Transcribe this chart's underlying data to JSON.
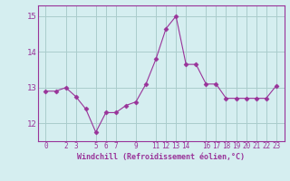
{
  "x": [
    0,
    1,
    2,
    3,
    4,
    5,
    6,
    7,
    8,
    9,
    10,
    11,
    12,
    13,
    14,
    15,
    16,
    17,
    18,
    19,
    20,
    21,
    22,
    23
  ],
  "y": [
    12.9,
    12.9,
    13.0,
    12.75,
    12.4,
    11.75,
    12.3,
    12.3,
    12.5,
    12.6,
    13.1,
    13.8,
    14.65,
    15.0,
    13.65,
    13.65,
    13.1,
    13.1,
    12.7,
    12.7,
    12.7,
    12.7,
    12.7,
    13.05
  ],
  "line_color": "#993399",
  "marker": "D",
  "marker_size": 2.5,
  "bg_color": "#d5eef0",
  "grid_color": "#aacccc",
  "xlabel": "Windchill (Refroidissement éolien,°C)",
  "xlabel_color": "#993399",
  "tick_color": "#993399",
  "ylim": [
    11.5,
    15.3
  ],
  "yticks": [
    12,
    13,
    14,
    15
  ],
  "xtick_positions": [
    0,
    2,
    3,
    5,
    6,
    7,
    9,
    11,
    12,
    13,
    14,
    16,
    17,
    18,
    19,
    20,
    21,
    22,
    23
  ],
  "xtick_labels": [
    "0",
    "2",
    "3",
    "5",
    "6",
    "7",
    "9",
    "11",
    "12",
    "13",
    "14",
    "16",
    "17",
    "18",
    "19",
    "20",
    "21",
    "22",
    "23"
  ]
}
